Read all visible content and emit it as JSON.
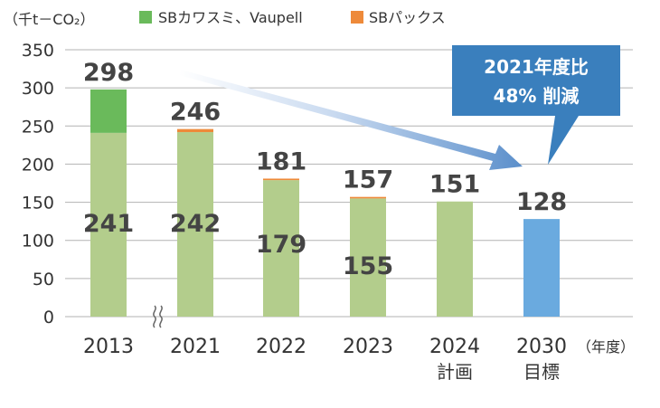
{
  "colors": {
    "base": "#b3cd8c",
    "sb_kawasumi": "#6aba5b",
    "sb_packs": "#ee8a3a",
    "target": "#6aaadf",
    "callout": "#3a7fbd",
    "arrow": "#6a9bd0"
  },
  "chart_data": {
    "type": "bar",
    "unit_label": "（千t－CO₂）",
    "year_unit": "（年度）",
    "legend": [
      {
        "name": "SBカワスミ、Vaupell",
        "color": "#6aba5b"
      },
      {
        "name": "SBパックス",
        "color": "#ee8a3a"
      }
    ],
    "ylim": [
      0,
      350
    ],
    "yticks": [
      0,
      50,
      100,
      150,
      200,
      250,
      300,
      350
    ],
    "grid": true,
    "axis_break_after_index": 0,
    "categories": [
      {
        "year": "2013",
        "sub": "",
        "base": 241,
        "kawasumi": 57,
        "packs": 0,
        "base_label": "241",
        "total_label": "298",
        "target": false
      },
      {
        "year": "2021",
        "sub": "",
        "base": 242,
        "kawasumi": 0,
        "packs": 4,
        "base_label": "242",
        "total_label": "246",
        "target": false
      },
      {
        "year": "2022",
        "sub": "",
        "base": 179,
        "kawasumi": 0,
        "packs": 2,
        "base_label": "179",
        "total_label": "181",
        "target": false
      },
      {
        "year": "2023",
        "sub": "",
        "base": 155,
        "kawasumi": 0,
        "packs": 2,
        "base_label": "155",
        "total_label": "157",
        "target": false
      },
      {
        "year": "2024",
        "sub": "計画",
        "base": 151,
        "kawasumi": 0,
        "packs": 0,
        "base_label": "",
        "total_label": "151",
        "target": false
      },
      {
        "year": "2030",
        "sub": "目標",
        "base": 128,
        "kawasumi": 0,
        "packs": 0,
        "base_label": "",
        "total_label": "128",
        "target": true
      }
    ],
    "annotation": {
      "lines": [
        "2021年度比",
        "48% 削減"
      ]
    }
  }
}
